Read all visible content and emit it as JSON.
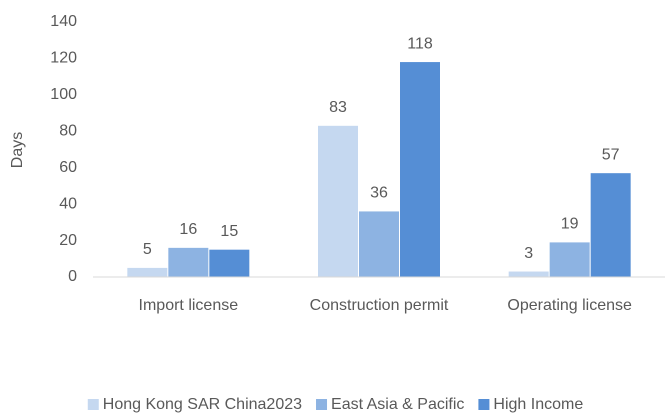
{
  "chart_data": {
    "type": "bar",
    "y_label": "Days",
    "categories": [
      "Import license",
      "Construction permit",
      "Operating license"
    ],
    "series": [
      {
        "name": "Hong Kong SAR China2023",
        "color": "#c5d8f0",
        "values": [
          5,
          83,
          3
        ]
      },
      {
        "name": "East Asia & Pacific",
        "color": "#8db3e2",
        "values": [
          16,
          36,
          19
        ]
      },
      {
        "name": "High Income",
        "color": "#558ed5",
        "values": [
          15,
          118,
          57
        ]
      }
    ],
    "ylim": [
      0,
      140
    ],
    "yticks": [
      0,
      20,
      40,
      60,
      80,
      100,
      120,
      140
    ],
    "grid": false,
    "legend": "bottom"
  }
}
